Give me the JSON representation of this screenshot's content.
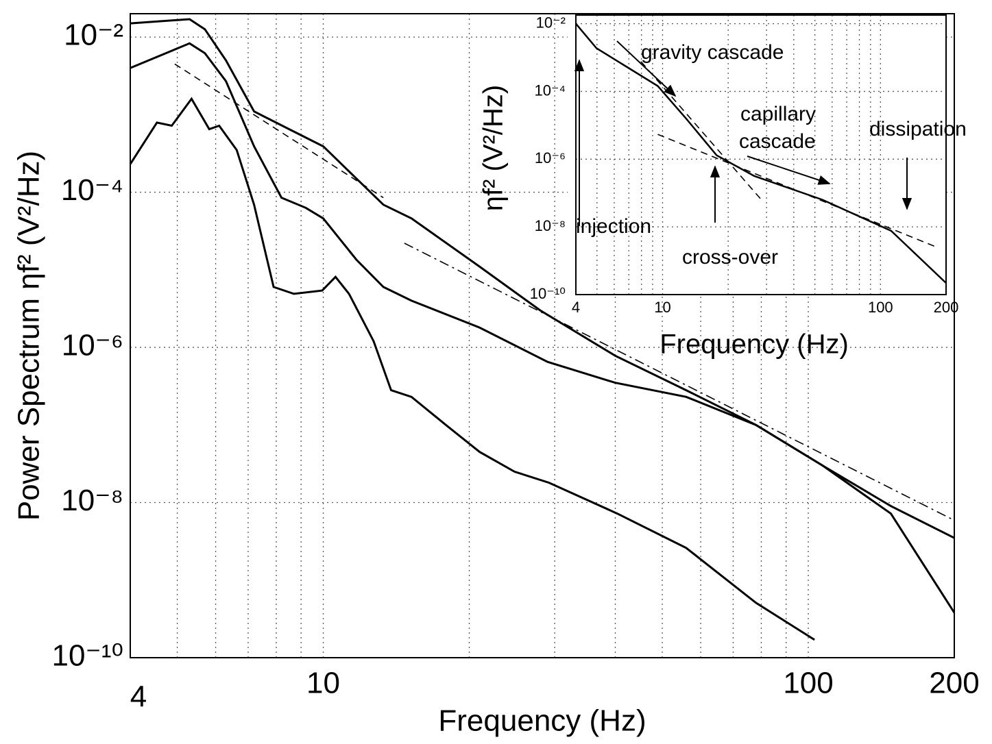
{
  "chart_data": [
    {
      "type": "line",
      "xlabel": "Frequency (Hz)",
      "ylabel": "Power Spectrum ηf² (V²/Hz)",
      "log_x": true,
      "log_y": true,
      "grid": true,
      "xlim": [
        4,
        200
      ],
      "ylim": [
        1e-10,
        0.02
      ],
      "xticks": [
        4,
        10,
        100,
        200
      ],
      "xminorticks": [
        5,
        6,
        7,
        8,
        9,
        20,
        30,
        40,
        50,
        60,
        70,
        80,
        90
      ],
      "yticks": [
        {
          "value": 1e-10,
          "label": "10⁻¹⁰"
        },
        {
          "value": 1e-08,
          "label": "10⁻⁸"
        },
        {
          "value": 1e-06,
          "label": "10⁻⁶"
        },
        {
          "value": 0.0001,
          "label": "10⁻⁴"
        },
        {
          "value": 0.01,
          "label": "10⁻²"
        }
      ],
      "series": [
        {
          "color": "#000000",
          "dash": "solid",
          "x": [
            4,
            5.3,
            5.7,
            6.3,
            7.2,
            8.5,
            10,
            11.7,
            13.3,
            15.2,
            21,
            28,
            40,
            56,
            78,
            107,
            148,
            200
          ],
          "values": [
            0.015,
            0.017,
            0.0126,
            0.005,
            0.0011,
            0.00065,
            0.00039,
            0.00015,
            6.9e-05,
            4.6e-05,
            1.1e-05,
            3e-06,
            7.8e-07,
            2.8e-07,
            1e-07,
            3e-08,
            9e-09,
            3.5e-09
          ]
        },
        {
          "color": "#000000",
          "dash": "solid",
          "x": [
            4,
            5.3,
            5.7,
            6.3,
            7.2,
            8.2,
            9.2,
            10,
            11.7,
            13.3,
            15.2,
            21,
            29,
            40,
            56,
            78,
            107,
            148,
            200
          ],
          "values": [
            0.004,
            0.0083,
            0.0062,
            0.0027,
            0.00039,
            8.5e-05,
            6.3e-05,
            4.6e-05,
            1.35e-05,
            6e-06,
            4e-06,
            1.8e-06,
            6.5e-07,
            3.5e-07,
            2.3e-07,
            1e-07,
            3e-08,
            7.2e-09,
            3.8e-10
          ]
        },
        {
          "color": "#000000",
          "dash": "solid",
          "x": [
            4,
            4.54,
            4.87,
            5.35,
            5.82,
            6.1,
            6.63,
            7.2,
            7.9,
            8.7,
            9.95,
            10.6,
            11.3,
            12.7,
            13.8,
            15.2,
            17.9,
            21,
            24.8,
            29.2,
            40.4,
            56,
            78,
            103
          ],
          "values": [
            0.00023,
            0.00079,
            0.00072,
            0.0016,
            0.00065,
            0.00072,
            0.00035,
            6.9e-05,
            6e-06,
            4.9e-06,
            5.4e-06,
            8.1e-06,
            4.9e-06,
            1.2e-06,
            2.8e-07,
            2.3e-07,
            1e-07,
            4.5e-08,
            2.5e-08,
            1.8e-08,
            7.2e-09,
            2.6e-09,
            5.1e-10,
            1.7e-10
          ]
        },
        {
          "color": "#000000",
          "dash": "dashed",
          "x": [
            4.94,
            13.3
          ],
          "values": [
            0.0045,
            8.5e-05
          ]
        },
        {
          "color": "#000000",
          "dash": "dashdot",
          "x": [
            14.7,
            200
          ],
          "values": [
            2.2e-05,
            5.9e-09
          ]
        }
      ]
    },
    {
      "type": "line",
      "xlabel": "Frequency (Hz)",
      "ylabel": "ηf² (V²/Hz)",
      "log_x": true,
      "log_y": true,
      "grid": true,
      "xlim": [
        4,
        200
      ],
      "ylim": [
        1e-10,
        0.018
      ],
      "xticks": [
        4,
        10,
        100,
        200
      ],
      "xminorticks": [
        5,
        6,
        7,
        8,
        9,
        20,
        30,
        40,
        50,
        60,
        70,
        80,
        90
      ],
      "yticks": [
        {
          "value": 1e-10,
          "label": "10⁻¹⁰"
        },
        {
          "value": 1e-08,
          "label": "10⁻⁸"
        },
        {
          "value": 1e-06,
          "label": "10⁻⁶"
        },
        {
          "value": 0.0001,
          "label": "10⁻⁴"
        },
        {
          "value": 0.01,
          "label": "10⁻²"
        }
      ],
      "annotations": [
        "gravity cascade",
        "capillary",
        "cascade",
        "dissipation",
        "injection",
        "cross-over"
      ],
      "series": [
        {
          "color": "#000000",
          "dash": "solid",
          "x": [
            4,
            4.97,
            6.64,
            9.5,
            12.7,
            17.7,
            26.3,
            54.2,
            112,
            200
          ],
          "values": [
            0.01,
            0.0019,
            0.0006,
            0.000145,
            1.7e-05,
            1.3e-06,
            3.2e-07,
            6.3e-08,
            7.6e-09,
            2.2e-10
          ]
        },
        {
          "color": "#000000",
          "dash": "dashed",
          "x": [
            7.96,
            28.4
          ],
          "values": [
            0.00076,
            6.3e-08
          ]
        },
        {
          "color": "#000000",
          "dash": "dashed",
          "x": [
            9.5,
            179
          ],
          "values": [
            5.4e-06,
            2.6e-09
          ]
        }
      ]
    }
  ]
}
